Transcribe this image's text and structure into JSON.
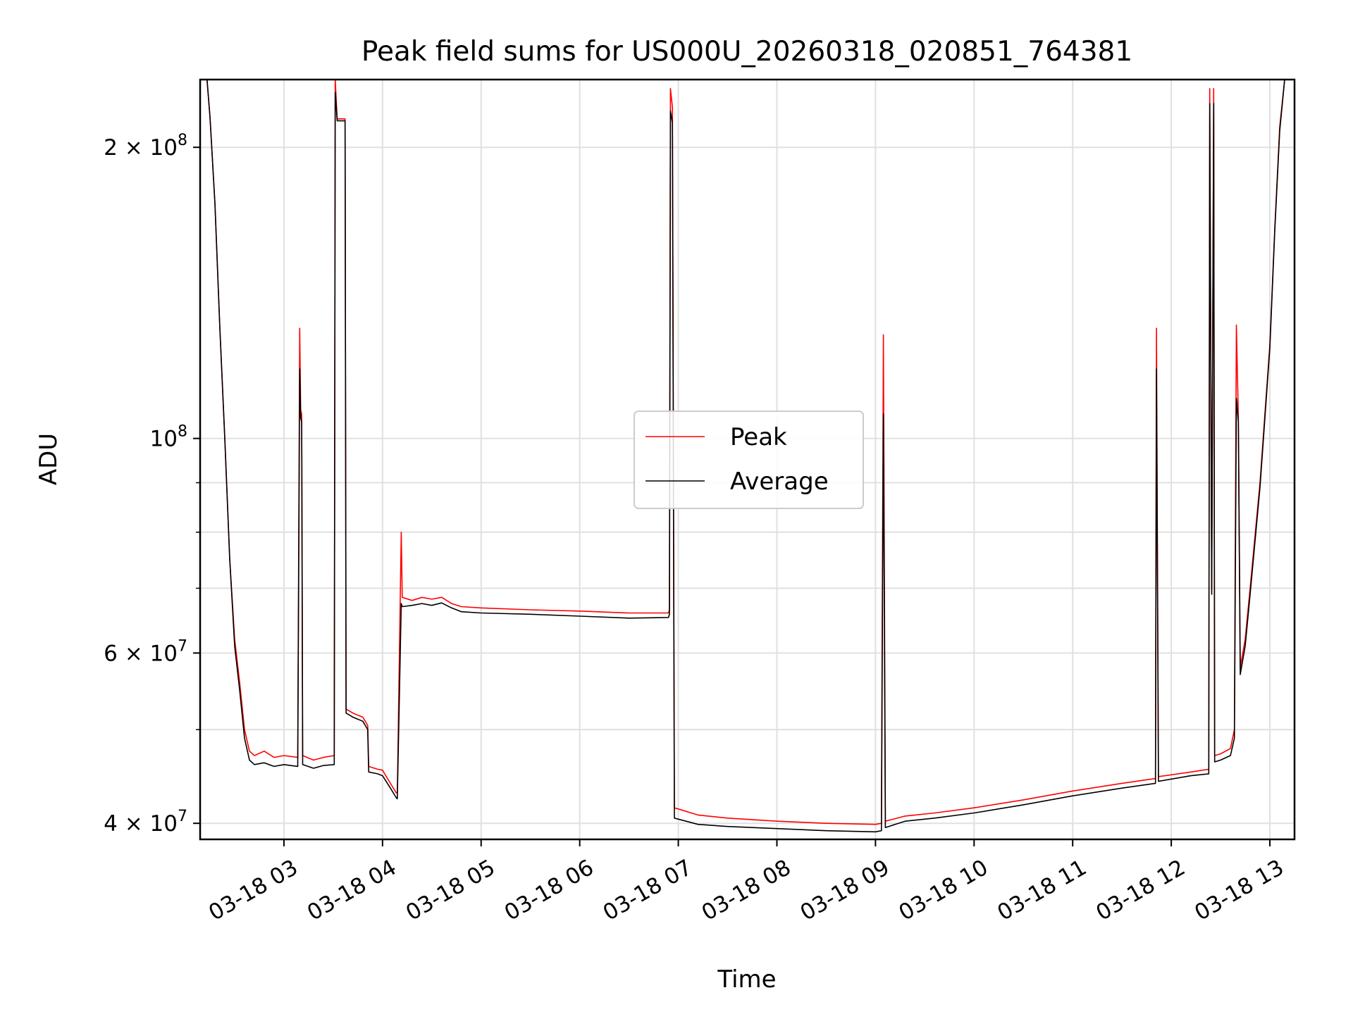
{
  "chart_data": {
    "type": "line",
    "title": "Peak field sums for US000U_20260318_020851_764381",
    "xlabel": "Time",
    "ylabel": "ADU",
    "yscale": "log",
    "ylim": [
      38500000,
      235000000
    ],
    "x_hours_range": [
      2.15,
      13.25
    ],
    "grid": true,
    "legend_position": "center",
    "x_ticks": [
      {
        "label": "03-18 03",
        "hour": 3
      },
      {
        "label": "03-18 04",
        "hour": 4
      },
      {
        "label": "03-18 05",
        "hour": 5
      },
      {
        "label": "03-18 06",
        "hour": 6
      },
      {
        "label": "03-18 07",
        "hour": 7
      },
      {
        "label": "03-18 08",
        "hour": 8
      },
      {
        "label": "03-18 09",
        "hour": 9
      },
      {
        "label": "03-18 10",
        "hour": 10
      },
      {
        "label": "03-18 11",
        "hour": 11
      },
      {
        "label": "03-18 12",
        "hour": 12
      },
      {
        "label": "03-18 13",
        "hour": 13
      }
    ],
    "y_major_ticks": [
      {
        "label": "4 × 10",
        "exp": "7",
        "value": 40000000
      },
      {
        "label": "6 × 10",
        "exp": "7",
        "value": 60000000
      },
      {
        "label": "10",
        "exp": "8",
        "value": 100000000
      },
      {
        "label": "2 × 10",
        "exp": "8",
        "value": 200000000
      }
    ],
    "y_minor_ticks": [
      50000000,
      70000000,
      80000000,
      90000000
    ],
    "series": [
      {
        "name": "Peak",
        "color": "#ff0000",
        "points": [
          [
            2.22,
            235000000
          ],
          [
            2.23,
            228000000
          ],
          [
            2.25,
            215000000
          ],
          [
            2.3,
            175000000
          ],
          [
            2.35,
            130000000
          ],
          [
            2.4,
            100000000
          ],
          [
            2.45,
            75000000
          ],
          [
            2.5,
            62000000
          ],
          [
            2.55,
            56000000
          ],
          [
            2.6,
            50000000
          ],
          [
            2.65,
            47500000
          ],
          [
            2.7,
            47000000
          ],
          [
            2.8,
            47500000
          ],
          [
            2.9,
            46800000
          ],
          [
            3.0,
            47000000
          ],
          [
            3.14,
            46800000
          ],
          [
            3.16,
            130000000
          ],
          [
            3.17,
            107000000
          ],
          [
            3.18,
            106000000
          ],
          [
            3.19,
            47000000
          ],
          [
            3.3,
            46500000
          ],
          [
            3.4,
            46800000
          ],
          [
            3.51,
            47000000
          ],
          [
            3.52,
            235000000
          ],
          [
            3.54,
            214000000
          ],
          [
            3.62,
            214000000
          ],
          [
            3.63,
            52500000
          ],
          [
            3.7,
            52000000
          ],
          [
            3.8,
            51500000
          ],
          [
            3.85,
            50500000
          ],
          [
            3.86,
            45800000
          ],
          [
            3.95,
            45500000
          ],
          [
            4.0,
            45400000
          ],
          [
            4.08,
            44000000
          ],
          [
            4.14,
            43000000
          ],
          [
            4.15,
            43000000
          ],
          [
            4.19,
            80000000
          ],
          [
            4.2,
            68500000
          ],
          [
            4.3,
            68000000
          ],
          [
            4.4,
            68500000
          ],
          [
            4.5,
            68200000
          ],
          [
            4.6,
            68500000
          ],
          [
            4.7,
            67500000
          ],
          [
            4.8,
            67000000
          ],
          [
            5.0,
            66800000
          ],
          [
            5.5,
            66500000
          ],
          [
            6.0,
            66300000
          ],
          [
            6.5,
            66000000
          ],
          [
            6.9,
            66000000
          ],
          [
            6.91,
            66500000
          ],
          [
            6.92,
            230000000
          ],
          [
            6.94,
            220000000
          ],
          [
            6.96,
            41500000
          ],
          [
            7.2,
            40800000
          ],
          [
            7.5,
            40500000
          ],
          [
            8.0,
            40200000
          ],
          [
            8.5,
            40000000
          ],
          [
            9.0,
            39900000
          ],
          [
            9.06,
            40000000
          ],
          [
            9.08,
            128000000
          ],
          [
            9.1,
            40200000
          ],
          [
            9.3,
            40700000
          ],
          [
            9.6,
            41000000
          ],
          [
            10.0,
            41500000
          ],
          [
            10.5,
            42300000
          ],
          [
            11.0,
            43200000
          ],
          [
            11.5,
            44000000
          ],
          [
            11.84,
            44500000
          ],
          [
            11.85,
            130000000
          ],
          [
            11.87,
            44700000
          ],
          [
            12.2,
            45200000
          ],
          [
            12.38,
            45500000
          ],
          [
            12.39,
            230000000
          ],
          [
            12.41,
            70000000
          ],
          [
            12.43,
            230000000
          ],
          [
            12.44,
            47000000
          ],
          [
            12.5,
            47200000
          ],
          [
            12.6,
            47800000
          ],
          [
            12.64,
            50000000
          ],
          [
            12.66,
            131000000
          ],
          [
            12.68,
            105000000
          ],
          [
            12.7,
            58000000
          ],
          [
            12.75,
            62000000
          ],
          [
            12.8,
            70000000
          ],
          [
            12.9,
            90000000
          ],
          [
            13.0,
            125000000
          ],
          [
            13.05,
            165000000
          ],
          [
            13.1,
            210000000
          ],
          [
            13.15,
            235000000
          ]
        ]
      },
      {
        "name": "Average",
        "color": "#000000",
        "points": [
          [
            2.22,
            235000000
          ],
          [
            2.23,
            228000000
          ],
          [
            2.25,
            215000000
          ],
          [
            2.3,
            175000000
          ],
          [
            2.35,
            130000000
          ],
          [
            2.4,
            100000000
          ],
          [
            2.45,
            75000000
          ],
          [
            2.5,
            61000000
          ],
          [
            2.55,
            55000000
          ],
          [
            2.6,
            49000000
          ],
          [
            2.65,
            46500000
          ],
          [
            2.7,
            46000000
          ],
          [
            2.8,
            46200000
          ],
          [
            2.9,
            45800000
          ],
          [
            3.0,
            46000000
          ],
          [
            3.14,
            45800000
          ],
          [
            3.16,
            118000000
          ],
          [
            3.17,
            105000000
          ],
          [
            3.18,
            104000000
          ],
          [
            3.19,
            46000000
          ],
          [
            3.3,
            45600000
          ],
          [
            3.4,
            45900000
          ],
          [
            3.51,
            46000000
          ],
          [
            3.52,
            228000000
          ],
          [
            3.54,
            213000000
          ],
          [
            3.62,
            213000000
          ],
          [
            3.63,
            52000000
          ],
          [
            3.7,
            51500000
          ],
          [
            3.8,
            51000000
          ],
          [
            3.85,
            50000000
          ],
          [
            3.86,
            45200000
          ],
          [
            3.95,
            45000000
          ],
          [
            4.0,
            44800000
          ],
          [
            4.08,
            43500000
          ],
          [
            4.14,
            42500000
          ],
          [
            4.15,
            42400000
          ],
          [
            4.19,
            67500000
          ],
          [
            4.2,
            67000000
          ],
          [
            4.3,
            67200000
          ],
          [
            4.4,
            67500000
          ],
          [
            4.5,
            67200000
          ],
          [
            4.6,
            67600000
          ],
          [
            4.7,
            66800000
          ],
          [
            4.8,
            66200000
          ],
          [
            5.0,
            66000000
          ],
          [
            5.5,
            65800000
          ],
          [
            6.0,
            65500000
          ],
          [
            6.5,
            65200000
          ],
          [
            6.9,
            65300000
          ],
          [
            6.91,
            65800000
          ],
          [
            6.92,
            218000000
          ],
          [
            6.94,
            212000000
          ],
          [
            6.96,
            40500000
          ],
          [
            7.2,
            39900000
          ],
          [
            7.5,
            39700000
          ],
          [
            8.0,
            39500000
          ],
          [
            8.5,
            39300000
          ],
          [
            9.0,
            39200000
          ],
          [
            9.06,
            39300000
          ],
          [
            9.08,
            106000000
          ],
          [
            9.1,
            39600000
          ],
          [
            9.3,
            40200000
          ],
          [
            9.6,
            40500000
          ],
          [
            10.0,
            41000000
          ],
          [
            10.5,
            41800000
          ],
          [
            11.0,
            42700000
          ],
          [
            11.5,
            43500000
          ],
          [
            11.84,
            44000000
          ],
          [
            11.85,
            118000000
          ],
          [
            11.87,
            44200000
          ],
          [
            12.2,
            44800000
          ],
          [
            12.38,
            45000000
          ],
          [
            12.39,
            222000000
          ],
          [
            12.41,
            69000000
          ],
          [
            12.43,
            222000000
          ],
          [
            12.44,
            46300000
          ],
          [
            12.5,
            46500000
          ],
          [
            12.6,
            47000000
          ],
          [
            12.64,
            49000000
          ],
          [
            12.66,
            110000000
          ],
          [
            12.68,
            104000000
          ],
          [
            12.7,
            57000000
          ],
          [
            12.75,
            61000000
          ],
          [
            12.8,
            69000000
          ],
          [
            12.9,
            89000000
          ],
          [
            13.0,
            124000000
          ],
          [
            13.05,
            164000000
          ],
          [
            13.1,
            208000000
          ],
          [
            13.15,
            235000000
          ]
        ]
      }
    ]
  }
}
